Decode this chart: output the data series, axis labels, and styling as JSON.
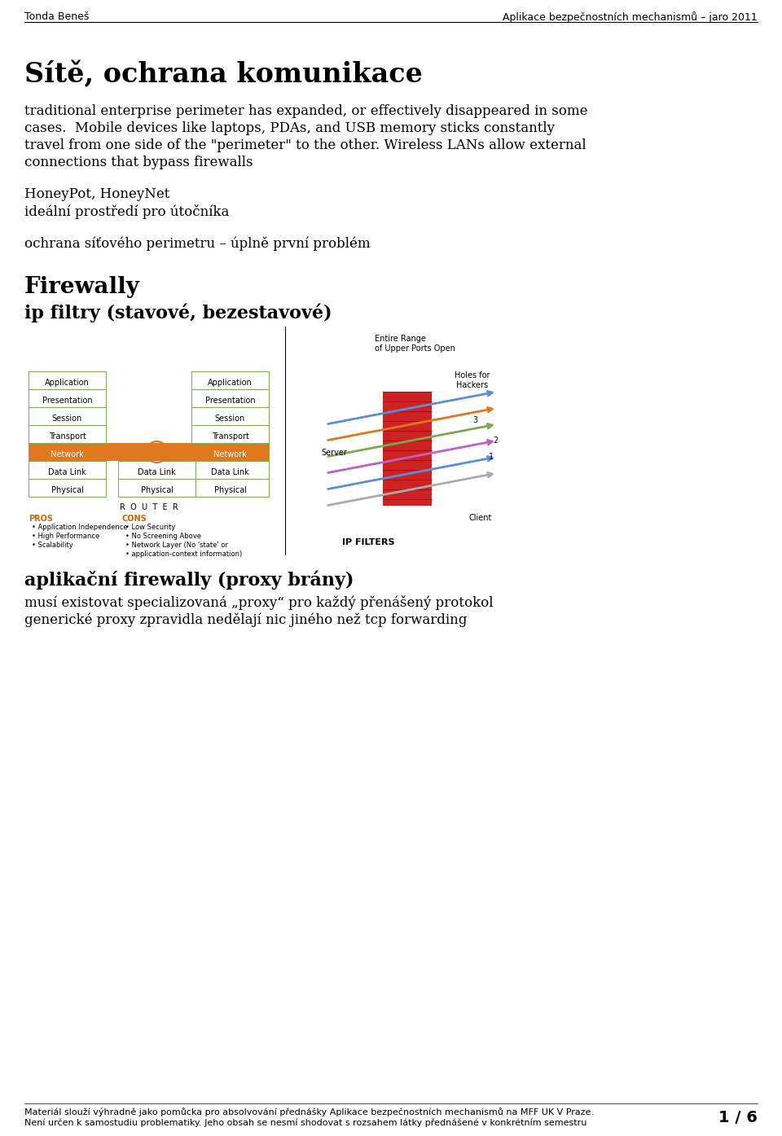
{
  "header_left": "Tonda Beneš",
  "header_right": "Aplikace bezpečnostních mechanismů – jaro 2011",
  "title": "Sítě, ochrana komunikace",
  "para1_lines": [
    "traditional enterprise perimeter has expanded, or effectively disappeared in some",
    "cases.  Mobile devices like laptops, PDAs, and USB memory sticks constantly",
    "travel from one side of the \"perimeter\" to the other. Wireless LANs allow external",
    "connections that bypass firewalls"
  ],
  "para2_lines": [
    "HoneyPot, HoneyNet",
    "ideální prostředí pro útočníka"
  ],
  "para3": "ochrana síťového perimetru – úplně první problém",
  "section_title": "Firewally",
  "subsection_title": "ip filtry (stavové, bezestavové)",
  "osi_layers_left": [
    "Application",
    "Presentation",
    "Session",
    "Transport",
    "Network",
    "Data Link",
    "Physical"
  ],
  "osi_layers_right": [
    "Application",
    "Presentation",
    "Session",
    "Transport",
    "Network",
    "Data Link",
    "Physical"
  ],
  "osi_layers_mid": [
    "Data Link",
    "Physical"
  ],
  "router_label": "R  O  U  T  E  R",
  "pros_header": "PROS",
  "pros_items": [
    "Application Independence",
    "High Performance",
    "Scalability"
  ],
  "cons_header": "CONS",
  "cons_items": [
    "Low Security",
    "No Screening Above",
    "Network Layer (No 'state' or",
    "application-context information)"
  ],
  "ipf_title": "Entire Range\nof Upper Ports Open",
  "ipf_label": "IP FILTERS",
  "ipf_server": "Server",
  "ipf_holes": "Holes for\nHackers",
  "ipf_client": "Client",
  "closing_title": "aplikační firewally (proxy brány)",
  "closing_lines": [
    "musí existovat specializovaná „proxy“ pro každý přenášený protokol",
    "generické proxy zpravidla nedělají nic jiného než tcp forwarding"
  ],
  "footer_line1": "Materiál slouží výhradně jako pomůcka pro absolvování přednášky Aplikace bezpečnostních mechanismů na MFF UK V Praze.",
  "footer_line2": "Není určen k samostudiu problematiky. Jeho obsah se nesmí shodovat s rozsahem látky přednášené v konkrétním semestru",
  "page_number": "1 / 6",
  "bg_color": "#ffffff",
  "network_color_orange": "#e07820",
  "layer_border_color": "#7aaa50",
  "network_bg_orange": "#e07820"
}
